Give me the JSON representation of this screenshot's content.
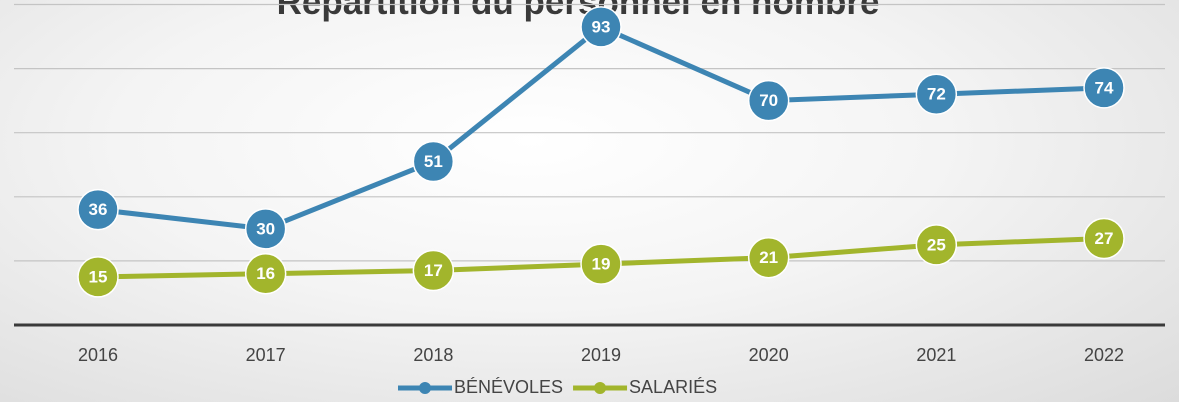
{
  "chart_data": {
    "type": "line",
    "title": "Répartition du personnel en nombre",
    "categories": [
      "2016",
      "2017",
      "2018",
      "2019",
      "2020",
      "2021",
      "2022"
    ],
    "series": [
      {
        "name": "BÉNÉVOLES",
        "color": "#3d85b3",
        "values": [
          36,
          30,
          51,
          93,
          70,
          72,
          74
        ]
      },
      {
        "name": "SALARIÉS",
        "color": "#a2b52c",
        "values": [
          15,
          16,
          17,
          19,
          21,
          25,
          27
        ]
      }
    ],
    "ylim": [
      0,
      100
    ],
    "yticks": [
      0,
      20,
      40,
      60,
      80,
      100
    ],
    "grid": true,
    "legend": "bottom"
  }
}
